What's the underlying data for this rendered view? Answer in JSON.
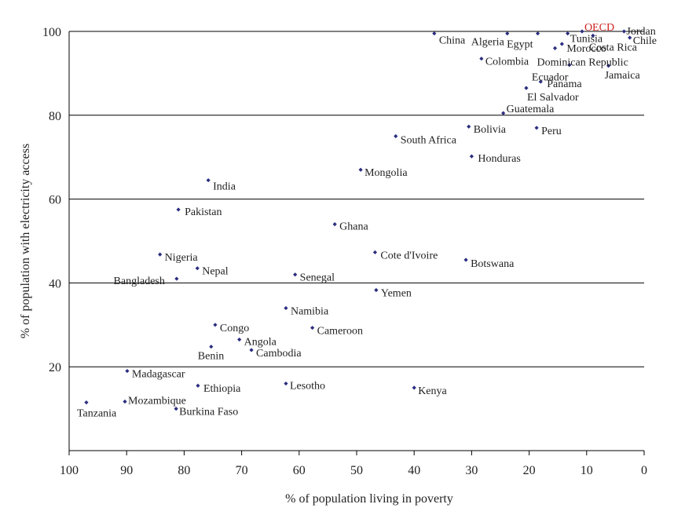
{
  "chart_data": {
    "type": "scatter",
    "xlabel": "% of population living in poverty",
    "ylabel": "% of population with electricity access",
    "xlim": [
      100,
      0
    ],
    "ylim": [
      0,
      100
    ],
    "x_reversed": true,
    "x_ticks": [
      "100",
      "90",
      "80",
      "70",
      "60",
      "50",
      "40",
      "30",
      "20",
      "10",
      "0"
    ],
    "y_ticks": [
      "20",
      "40",
      "60",
      "80",
      "100"
    ],
    "grid": "horizontal",
    "colors": {
      "point": "#2b2d7e",
      "highlight": "#cc2222",
      "text": "#222222",
      "axis": "#000000"
    },
    "points": [
      {
        "label": "China",
        "x": 36.5,
        "y": 99.5
      },
      {
        "label": "Algeria",
        "x": 23.8,
        "y": 99.5
      },
      {
        "label": "Egypt",
        "x": 18.5,
        "y": 99.5
      },
      {
        "label": "Tunisia",
        "x": 13.3,
        "y": 99.5
      },
      {
        "label": "OECD",
        "x": 10.8,
        "y": 100,
        "highlight": true
      },
      {
        "label": "Jordan",
        "x": 3.5,
        "y": 100
      },
      {
        "label": "Chile",
        "x": 2.5,
        "y": 98.5
      },
      {
        "label": "Costa Rica",
        "x": 8.9,
        "y": 99
      },
      {
        "label": "Morocco",
        "x": 14.3,
        "y": 97
      },
      {
        "label": "Dominican Republic",
        "x": 15.5,
        "y": 96
      },
      {
        "label": "Ecuador",
        "x": 13.0,
        "y": 92
      },
      {
        "label": "Colombia",
        "x": 28.3,
        "y": 93.5
      },
      {
        "label": "Jamaica",
        "x": 6.2,
        "y": 91.8
      },
      {
        "label": "Panama",
        "x": 18.0,
        "y": 88
      },
      {
        "label": "El Salvador",
        "x": 20.5,
        "y": 86.5
      },
      {
        "label": "Guatemala",
        "x": 24.5,
        "y": 80.5
      },
      {
        "label": "Bolivia",
        "x": 30.5,
        "y": 77.3
      },
      {
        "label": "Peru",
        "x": 18.7,
        "y": 77
      },
      {
        "label": "South Africa",
        "x": 43.2,
        "y": 75
      },
      {
        "label": "Honduras",
        "x": 30.0,
        "y": 70.2
      },
      {
        "label": "Mongolia",
        "x": 49.3,
        "y": 67
      },
      {
        "label": "India",
        "x": 75.8,
        "y": 64.5
      },
      {
        "label": "Pakistan",
        "x": 81.0,
        "y": 57.5
      },
      {
        "label": "Ghana",
        "x": 53.8,
        "y": 54
      },
      {
        "label": "Cote d'Ivoire",
        "x": 46.8,
        "y": 47.3
      },
      {
        "label": "Botswana",
        "x": 31.0,
        "y": 45.5
      },
      {
        "label": "Nigeria",
        "x": 84.2,
        "y": 46.8
      },
      {
        "label": "Nepal",
        "x": 77.7,
        "y": 43.5
      },
      {
        "label": "Bangladesh",
        "x": 81.3,
        "y": 41
      },
      {
        "label": "Senegal",
        "x": 60.7,
        "y": 42
      },
      {
        "label": "Yemen",
        "x": 46.6,
        "y": 38.3
      },
      {
        "label": "Namibia",
        "x": 62.3,
        "y": 34
      },
      {
        "label": "Congo",
        "x": 74.6,
        "y": 30
      },
      {
        "label": "Cameroon",
        "x": 57.7,
        "y": 29.3
      },
      {
        "label": "Angola",
        "x": 70.4,
        "y": 26.5
      },
      {
        "label": "Benin",
        "x": 75.3,
        "y": 24.8
      },
      {
        "label": "Cambodia",
        "x": 68.3,
        "y": 24
      },
      {
        "label": "Madagascar",
        "x": 89.9,
        "y": 19
      },
      {
        "label": "Lesotho",
        "x": 62.3,
        "y": 16
      },
      {
        "label": "Ethiopia",
        "x": 77.6,
        "y": 15.5
      },
      {
        "label": "Kenya",
        "x": 40.0,
        "y": 15
      },
      {
        "label": "Mozambique",
        "x": 90.3,
        "y": 11.7
      },
      {
        "label": "Tanzania",
        "x": 97.0,
        "y": 11.5
      },
      {
        "label": "Burkina Faso",
        "x": 81.4,
        "y": 10
      }
    ]
  }
}
